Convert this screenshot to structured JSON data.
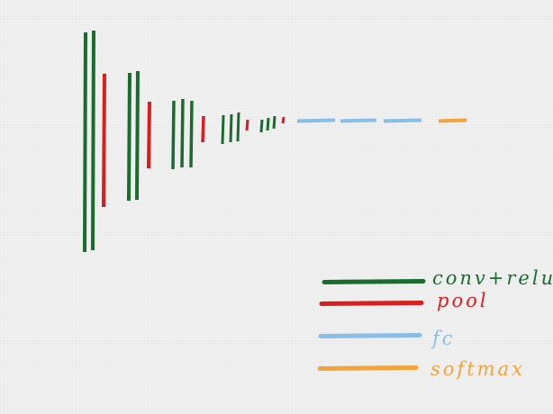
{
  "colors": {
    "conv_relu": "#1a6b2e",
    "pool": "#d81e1e",
    "fc": "#88bde6",
    "softmax": "#f2a33a",
    "background": "#f0f0f0"
  },
  "legend": {
    "items": [
      {
        "key": "conv_relu",
        "label": "conv+relu"
      },
      {
        "key": "pool",
        "label": "pool"
      },
      {
        "key": "fc",
        "label": "fc"
      },
      {
        "key": "softmax",
        "label": "softmax"
      }
    ]
  },
  "network": {
    "stages": [
      {
        "layers": [
          "conv_relu",
          "conv_relu",
          "pool"
        ]
      },
      {
        "layers": [
          "conv_relu",
          "conv_relu",
          "pool"
        ]
      },
      {
        "layers": [
          "conv_relu",
          "conv_relu",
          "conv_relu",
          "pool"
        ]
      },
      {
        "layers": [
          "conv_relu",
          "conv_relu",
          "conv_relu",
          "pool"
        ]
      },
      {
        "layers": [
          "conv_relu",
          "conv_relu",
          "conv_relu",
          "pool"
        ]
      },
      {
        "layers": [
          "fc",
          "fc",
          "fc",
          "softmax"
        ]
      }
    ]
  }
}
